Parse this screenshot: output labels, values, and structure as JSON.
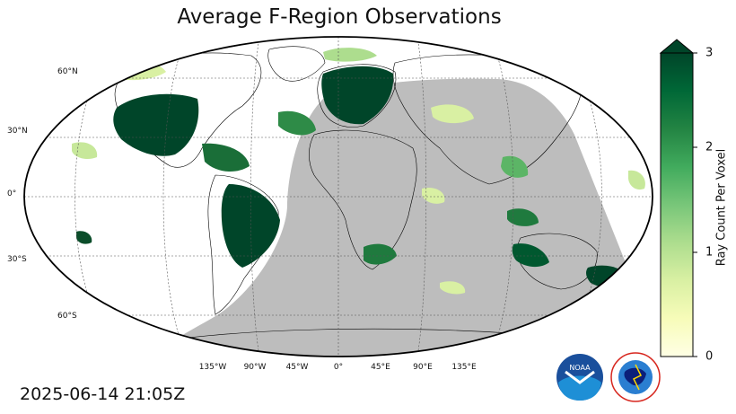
{
  "title": "Average F-Region Observations",
  "timestamp": "2025-06-14 21:05Z",
  "map": {
    "projection": "robinson",
    "graticule": true,
    "night_shading": true,
    "lat_labels": [
      "60°N",
      "30°N",
      "0°",
      "30°S",
      "60°S"
    ],
    "lon_labels": [
      "135°W",
      "90°W",
      "45°W",
      "0°",
      "45°E",
      "90°E",
      "135°E"
    ],
    "colors": {
      "night": "#bdbdbd",
      "border": "#000000",
      "gridline": "#555555"
    }
  },
  "colorbar": {
    "label": "Ray Count Per Voxel",
    "min": 0,
    "max": 3,
    "ticks": [
      "0",
      "1",
      "2",
      "3"
    ],
    "extend": "max",
    "colormap": "YlGn",
    "colors": [
      "#ffffe5",
      "#f7fcb9",
      "#d9f0a3",
      "#addd8e",
      "#78c679",
      "#41ab5d",
      "#238443",
      "#006837",
      "#004529"
    ]
  },
  "logos": [
    "noaa-logo",
    "national-weather-service-logo"
  ]
}
